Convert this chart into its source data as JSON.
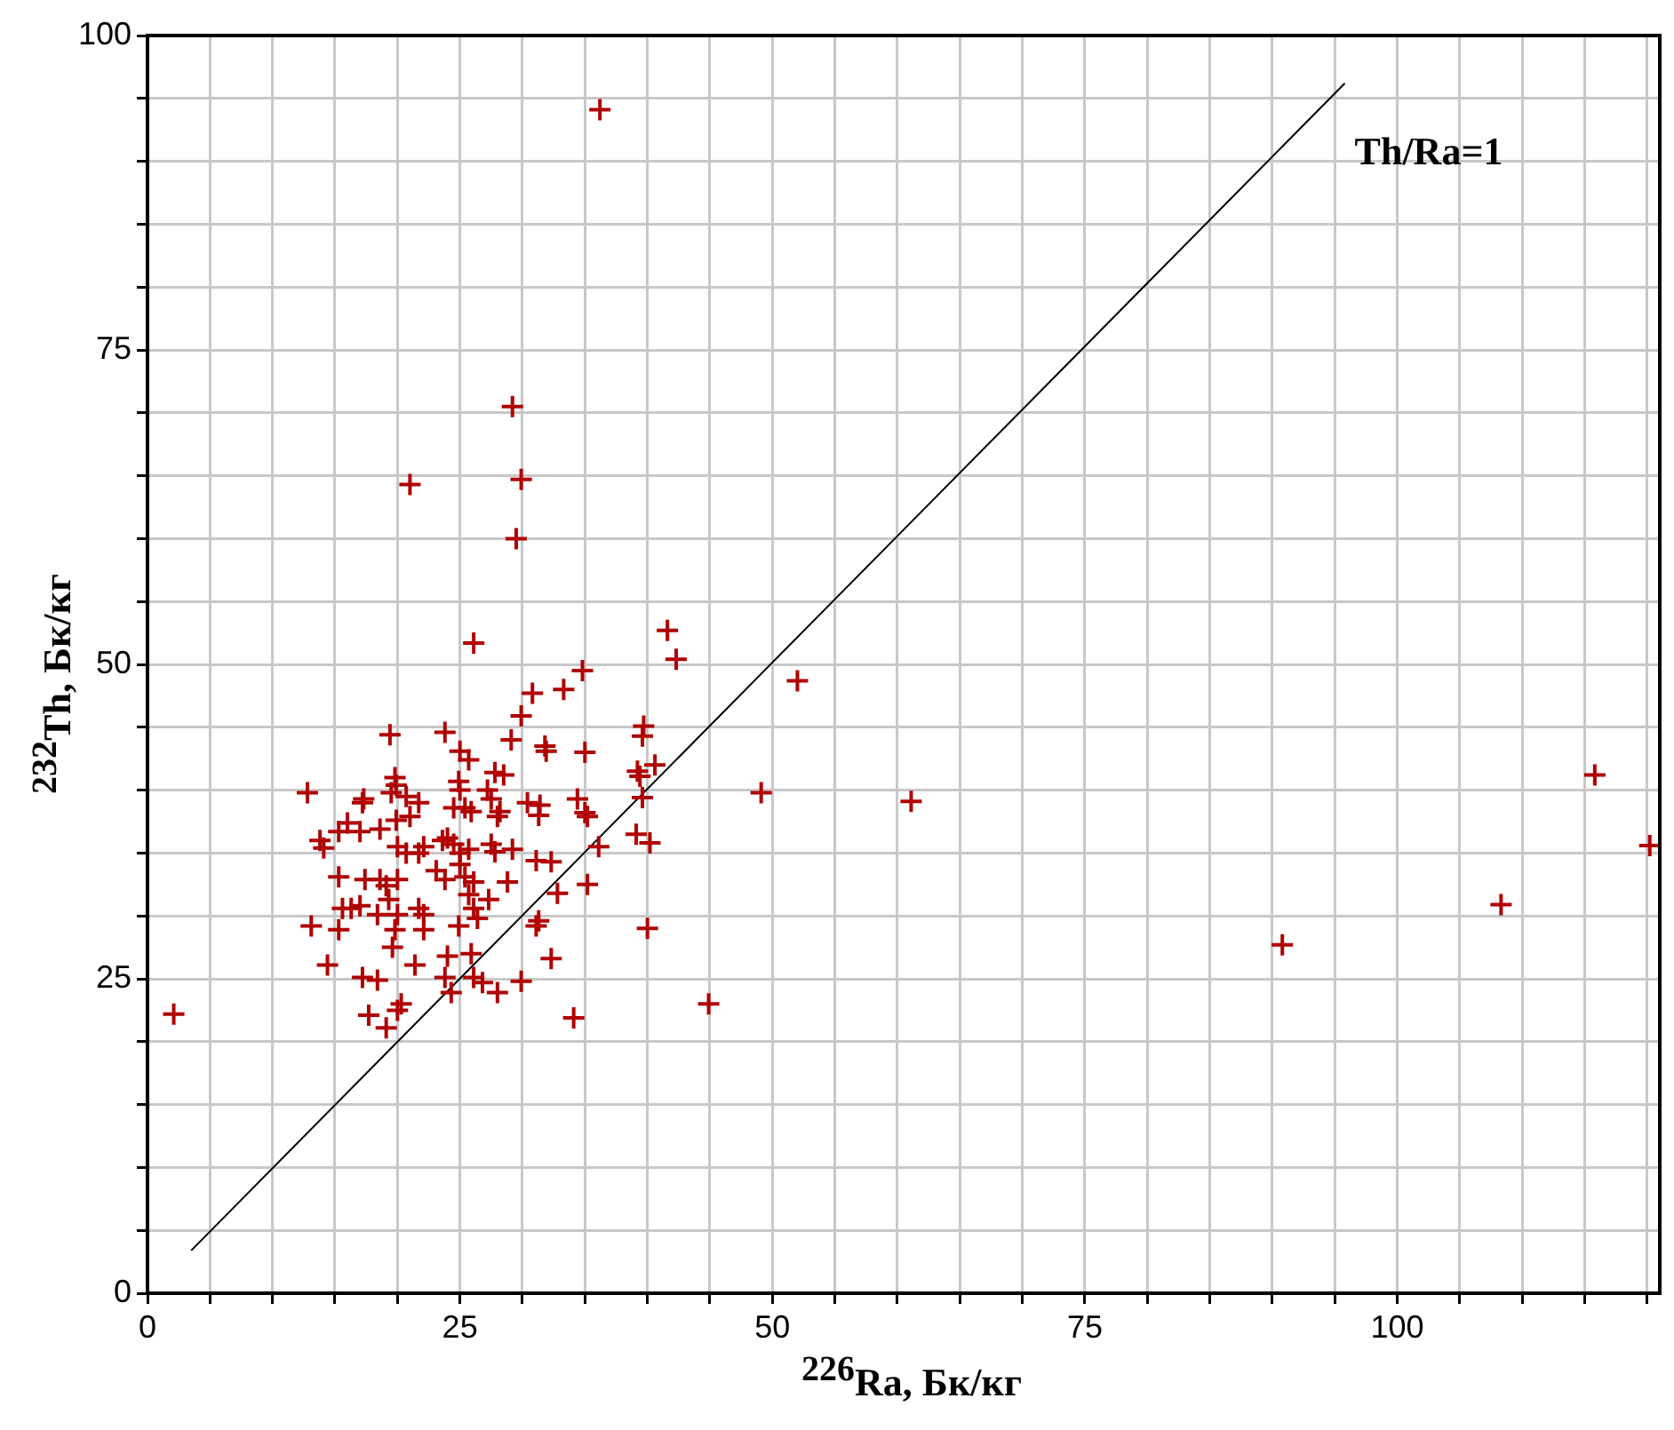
{
  "chart_data": {
    "type": "scatter",
    "xlabel": "$^{226}$Ra, Бк/кг",
    "ylabel": "$^{232}$Th, Бк/кг",
    "xlim": [
      0,
      121
    ],
    "ylim": [
      0,
      100
    ],
    "xticks": [
      0,
      {
        "value": 5,
        "label": null
      },
      {
        "value": 10,
        "label": null
      },
      {
        "value": 15,
        "label": null
      },
      {
        "value": 20,
        "label": null
      },
      25,
      {
        "value": 30,
        "label": null
      },
      {
        "value": 35,
        "label": null
      },
      {
        "value": 40,
        "label": null
      },
      {
        "value": 45,
        "label": null
      },
      50,
      {
        "value": 55,
        "label": null
      },
      {
        "value": 60,
        "label": null
      },
      {
        "value": 65,
        "label": null
      },
      {
        "value": 70,
        "label": null
      },
      75,
      {
        "value": 80,
        "label": null
      },
      {
        "value": 85,
        "label": null
      },
      {
        "value": 90,
        "label": null
      },
      {
        "value": 95,
        "label": null
      },
      100,
      {
        "value": 105,
        "label": null
      },
      {
        "value": 110,
        "label": null
      },
      {
        "value": 115,
        "label": null
      },
      {
        "value": 120,
        "label": null
      }
    ],
    "yticks": [
      0,
      {
        "value": 5,
        "label": null
      },
      {
        "value": 10,
        "label": null
      },
      {
        "value": 15,
        "label": null
      },
      {
        "value": 20,
        "label": null
      },
      25,
      {
        "value": 30,
        "label": null
      },
      {
        "value": 35,
        "label": null
      },
      {
        "value": 40,
        "label": null
      },
      {
        "value": 45,
        "label": null
      },
      50,
      {
        "value": 55,
        "label": null
      },
      {
        "value": 60,
        "label": null
      },
      {
        "value": 65,
        "label": null
      },
      {
        "value": 70,
        "label": null
      },
      75,
      {
        "value": 80,
        "label": null
      },
      {
        "value": 85,
        "label": null
      },
      {
        "value": 90,
        "label": null
      },
      {
        "value": 95,
        "label": null
      },
      100
    ],
    "grid": true,
    "legend": false,
    "marker": "cross",
    "annotations": [
      "Th/Ra=1"
    ],
    "series": [
      {
        "color": "#b00000",
        "x": [
          2.1,
          36.2,
          29.2,
          29.9,
          29.5,
          21.0,
          26.1,
          41.6,
          42.3,
          52.0,
          49.1,
          61.1,
          44.9,
          90.8,
          108.3,
          115.8,
          120.2,
          34.8,
          33.3,
          30.8,
          39.7,
          39.6,
          31.8,
          31.9,
          35.0,
          39.2,
          39.4,
          40.6,
          34.4,
          35.0,
          35.2,
          31.4,
          31.3,
          39.6,
          36.1,
          39.1,
          40.2,
          31.1,
          32.3,
          32.8,
          35.2,
          31.3,
          31.1,
          32.3,
          40.0,
          34.1,
          29.9,
          29.1,
          19.4,
          23.8,
          25.0,
          25.7,
          27.8,
          28.5,
          19.8,
          19.9,
          24.9,
          25.0,
          12.8,
          19.5,
          20.7,
          21.7,
          27.2,
          27.5,
          17.3,
          17.2,
          25.4,
          25.9,
          24.5,
          30.4,
          21.0,
          28.2,
          28.0,
          16.0,
          15.3,
          17.0,
          18.6,
          19.9,
          13.8,
          14.1,
          20.0,
          20.7,
          21.7,
          22.1,
          23.6,
          24.0,
          24.5,
          25.0,
          25.7,
          23.1,
          23.8,
          25.0,
          25.4,
          27.5,
          27.8,
          29.2,
          15.3,
          17.4,
          18.6,
          19.1,
          20.0,
          19.3,
          26.1,
          25.7,
          27.3,
          28.8,
          15.6,
          16.3,
          17.0,
          18.4,
          20.0,
          21.7,
          22.1,
          26.1,
          26.4,
          24.9,
          13.1,
          15.3,
          19.8,
          22.1,
          19.6,
          14.4,
          21.4,
          24.0,
          25.9,
          17.2,
          18.4,
          23.8,
          26.1,
          26.8,
          28.0,
          29.9,
          24.3,
          20.3,
          20.0,
          17.7,
          19.1
        ],
        "values": [
          22.2,
          94.1,
          70.5,
          64.7,
          60.0,
          64.3,
          51.7,
          52.7,
          50.4,
          48.7,
          39.8,
          39.1,
          23.0,
          27.7,
          30.9,
          41.2,
          35.6,
          49.5,
          48.0,
          47.7,
          45.1,
          44.3,
          43.5,
          43.1,
          43.0,
          41.5,
          41.1,
          42.0,
          39.3,
          38.2,
          37.9,
          38.8,
          38.0,
          39.4,
          35.5,
          36.5,
          35.8,
          34.4,
          34.3,
          31.8,
          32.5,
          29.6,
          29.2,
          26.6,
          29.0,
          21.9,
          45.9,
          44.0,
          44.4,
          44.6,
          43.1,
          42.4,
          41.4,
          41.2,
          41.0,
          40.4,
          40.7,
          40.0,
          39.8,
          39.8,
          39.5,
          39.0,
          40.0,
          39.3,
          39.3,
          39.0,
          38.6,
          38.3,
          38.6,
          39.0,
          37.9,
          38.3,
          37.9,
          37.4,
          36.7,
          36.7,
          36.9,
          37.6,
          36.0,
          35.4,
          35.5,
          35.0,
          35.0,
          35.5,
          36.0,
          36.2,
          35.7,
          35.0,
          35.3,
          33.6,
          32.9,
          34.1,
          33.1,
          35.7,
          35.1,
          35.3,
          33.1,
          32.9,
          32.9,
          32.4,
          32.9,
          31.3,
          32.7,
          31.7,
          31.3,
          32.7,
          30.6,
          30.6,
          30.8,
          30.1,
          30.1,
          30.6,
          30.1,
          30.6,
          29.8,
          29.2,
          29.2,
          28.9,
          28.9,
          28.9,
          27.5,
          26.1,
          26.1,
          26.8,
          27.0,
          25.1,
          24.9,
          25.1,
          25.1,
          24.7,
          23.9,
          24.8,
          23.9,
          23.0,
          22.5,
          22.1,
          21.1
        ]
      },
      {
        "type": "line",
        "color": "#000000",
        "marker": "none",
        "x": [
          3.5,
          95.8
        ],
        "values": [
          3.4,
          96.2
        ]
      }
    ]
  }
}
